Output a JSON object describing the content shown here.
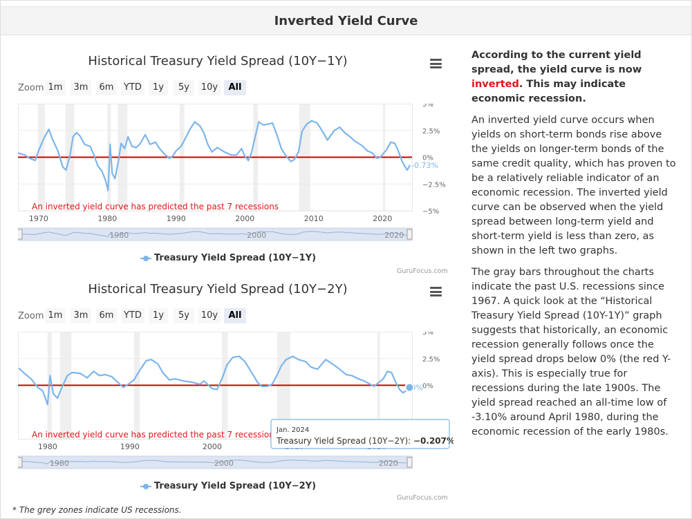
{
  "header": {
    "title": "Inverted Yield Curve"
  },
  "range_selector": {
    "zoom_label": "Zoom",
    "buttons": [
      "1m",
      "3m",
      "6m",
      "YTD",
      "1y",
      "5y",
      "10y",
      "All"
    ],
    "active": "All"
  },
  "colors": {
    "series": "#7cb5ec",
    "zero_line": "#cc0000",
    "recession": "#efefef",
    "annotation": "#e0161b"
  },
  "credit": "GuruFocus.com",
  "footnote": "* The grey zones indicate US recessions.",
  "side": {
    "lead_pre": "According to the current yield spread, the yield curve is now ",
    "lead_highlight": "inverted",
    "lead_post": ". This may indicate economic recession.",
    "p1": "An inverted yield curve occurs when yields on short-term bonds rise above the yields on longer-term bonds of the same credit quality, which has proven to be a relatively reliable indicator of an economic recession. The inverted yield curve can be observed when the yield spread between long-term yield and short-term yield is less than zero, as shown in the left two graphs.",
    "p2": "The gray bars throughout the charts indicate the past U.S. recessions since 1967. A quick look at the “Historical Treasury Yield Spread (10Y-1Y)” graph suggests that historically, an economic recession generally follows once the yield spread drops below 0% (the red Y-axis). This is especially true for recessions during the late 1900s. The yield spread reached an all-time low of -3.10% around April 1980, during the economic recession of the early 1980s."
  },
  "chart_data": [
    {
      "type": "line",
      "title": "Historical Treasury Yield Spread (10Y−1Y)",
      "legend": "Treasury Yield Spread (10Y−1Y)",
      "annotation": "An inverted yield curve has predicted the past 7 recessions",
      "current_label": "-0.73%",
      "xlim": [
        1967,
        2024.3
      ],
      "ylim": [
        -5,
        5
      ],
      "y_ticks": [
        "5%",
        "2.5%",
        "0%",
        "−2.5%",
        "−5%"
      ],
      "y_tick_values": [
        5,
        2.5,
        0,
        -2.5,
        -5
      ],
      "x_ticks": [
        "1970",
        "1980",
        "1990",
        "2000",
        "2010",
        "2020"
      ],
      "x_tick_values": [
        1970,
        1980,
        1990,
        2000,
        2010,
        2020
      ],
      "navigator_labels": [
        "1980",
        "2000",
        "2020"
      ],
      "recessions": [
        [
          1969.9,
          1970.9
        ],
        [
          1973.9,
          1975.2
        ],
        [
          1980.0,
          1980.5
        ],
        [
          1981.5,
          1982.9
        ],
        [
          1990.5,
          1991.2
        ],
        [
          2001.2,
          2001.9
        ],
        [
          2007.9,
          2009.5
        ],
        [
          2020.1,
          2020.4
        ]
      ],
      "x": [
        1967,
        1968,
        1968.7,
        1969.5,
        1970,
        1970.8,
        1971.5,
        1972,
        1972.8,
        1973.5,
        1974,
        1974.6,
        1975,
        1975.5,
        1976,
        1976.7,
        1977.5,
        1978,
        1978.6,
        1979.2,
        1979.7,
        1980.1,
        1980.4,
        1980.7,
        1981.1,
        1981.6,
        1982,
        1982.5,
        1983,
        1983.6,
        1984.2,
        1984.8,
        1985.5,
        1986.2,
        1987,
        1987.6,
        1988.3,
        1989,
        1989.5,
        1990,
        1990.7,
        1991.3,
        1992,
        1992.7,
        1993.5,
        1994,
        1994.6,
        1995.2,
        1996,
        1997,
        1998,
        1998.8,
        1999.5,
        2000,
        2000.5,
        2001,
        2001.5,
        2002,
        2002.7,
        2003.5,
        2004,
        2004.7,
        2005.3,
        2006,
        2006.7,
        2007.2,
        2007.8,
        2008.3,
        2009,
        2009.7,
        2010.5,
        2011.3,
        2012,
        2013,
        2013.8,
        2014.5,
        2015.3,
        2016,
        2017,
        2017.8,
        2018.5,
        2019.2,
        2019.7,
        2020.2,
        2020.6,
        2021.2,
        2021.8,
        2022.3,
        2022.8,
        2023.2,
        2023.6,
        2024
      ],
      "y": [
        0.4,
        0.2,
        -0.1,
        -0.3,
        0.6,
        1.8,
        2.6,
        1.7,
        0.6,
        -0.9,
        -1.2,
        0.3,
        1.9,
        2.3,
        2.0,
        1.2,
        1.0,
        0.3,
        -0.8,
        -1.3,
        -2.1,
        -3.1,
        1.2,
        -1.5,
        -2.0,
        -0.4,
        1.3,
        0.8,
        1.9,
        1.0,
        0.9,
        1.3,
        2.1,
        1.2,
        1.4,
        0.8,
        0.3,
        -0.1,
        0.1,
        0.6,
        1.0,
        1.7,
        2.6,
        3.3,
        2.9,
        2.3,
        1.2,
        0.5,
        0.9,
        0.5,
        0.2,
        0.2,
        0.8,
        0.1,
        -0.3,
        0.5,
        1.9,
        3.3,
        3.0,
        3.1,
        3.2,
        2.0,
        0.8,
        0.1,
        -0.4,
        -0.2,
        0.5,
        2.4,
        3.1,
        3.4,
        3.2,
        2.4,
        1.6,
        2.5,
        2.8,
        2.3,
        1.9,
        1.5,
        1.1,
        0.6,
        0.4,
        -0.1,
        0.0,
        0.4,
        0.7,
        1.4,
        1.3,
        0.6,
        -0.3,
        -0.8,
        -1.2,
        -0.73
      ]
    },
    {
      "type": "line",
      "title": "Historical Treasury Yield Spread (10Y−2Y)",
      "legend": "Treasury Yield Spread (10Y−2Y)",
      "annotation": "An inverted yield curve has predicted the past 7 recessions",
      "current_label": "0%",
      "xlim": [
        1976.4,
        2024.3
      ],
      "ylim": [
        -5,
        5
      ],
      "y_ticks": [
        "5%",
        "2.5%",
        "0%"
      ],
      "y_tick_values": [
        5,
        2.5,
        0
      ],
      "x_ticks": [
        "1980",
        "1990",
        "2000",
        "2010",
        "2020"
      ],
      "x_tick_values": [
        1980,
        1990,
        2000,
        2010,
        2020
      ],
      "navigator_labels": [
        "1980",
        "2000",
        "2020"
      ],
      "recessions": [
        [
          1980.0,
          1980.5
        ],
        [
          1981.5,
          1982.9
        ],
        [
          1990.5,
          1991.2
        ],
        [
          2001.2,
          2001.9
        ],
        [
          2007.9,
          2009.5
        ],
        [
          2020.1,
          2020.4
        ]
      ],
      "x": [
        1976.5,
        1977.2,
        1978,
        1978.8,
        1979.4,
        1980,
        1980.3,
        1980.7,
        1981.2,
        1981.8,
        1982.4,
        1983,
        1984,
        1984.8,
        1985.6,
        1986.3,
        1987,
        1987.8,
        1988.5,
        1989.2,
        1989.8,
        1990.5,
        1991.2,
        1992,
        1992.6,
        1993.4,
        1994,
        1994.8,
        1995.5,
        1996.5,
        1997.5,
        1998.5,
        1999,
        2000,
        2000.6,
        2001.2,
        2001.8,
        2002.5,
        2003.3,
        2004,
        2004.8,
        2005.5,
        2006,
        2006.7,
        2007.3,
        2007.8,
        2008.4,
        2009,
        2009.8,
        2010.5,
        2011.4,
        2012,
        2012.8,
        2013.8,
        2014.8,
        2015.5,
        2016.3,
        2017,
        2017.8,
        2018.5,
        2019.2,
        2019.7,
        2020.3,
        2020.8,
        2021.3,
        2021.8,
        2022.3,
        2022.8,
        2023.2,
        2023.6,
        2024
      ],
      "y": [
        1.6,
        1.1,
        0.6,
        -0.2,
        -0.5,
        -1.8,
        0.9,
        -0.8,
        -1.2,
        -0.1,
        0.9,
        1.2,
        1.1,
        0.7,
        1.3,
        0.9,
        1.0,
        0.8,
        0.3,
        -0.2,
        0.1,
        0.5,
        1.4,
        2.3,
        2.4,
        2.0,
        1.2,
        0.5,
        0.6,
        0.4,
        0.3,
        0.1,
        0.4,
        -0.3,
        -0.4,
        0.6,
        1.9,
        2.6,
        2.7,
        2.2,
        1.2,
        0.3,
        -0.1,
        -0.1,
        0.1,
        0.8,
        1.8,
        2.4,
        2.7,
        2.4,
        2.2,
        1.7,
        1.5,
        2.4,
        1.9,
        1.5,
        1.0,
        0.9,
        0.6,
        0.4,
        0.1,
        -0.1,
        0.3,
        0.6,
        1.3,
        1.2,
        0.3,
        -0.4,
        -0.7,
        -0.5,
        -0.207
      ]
    }
  ],
  "tooltip": {
    "date": "Jan. 2024",
    "series": "Treasury Yield Spread (10Y−2Y): ",
    "value": "−0.207%"
  }
}
